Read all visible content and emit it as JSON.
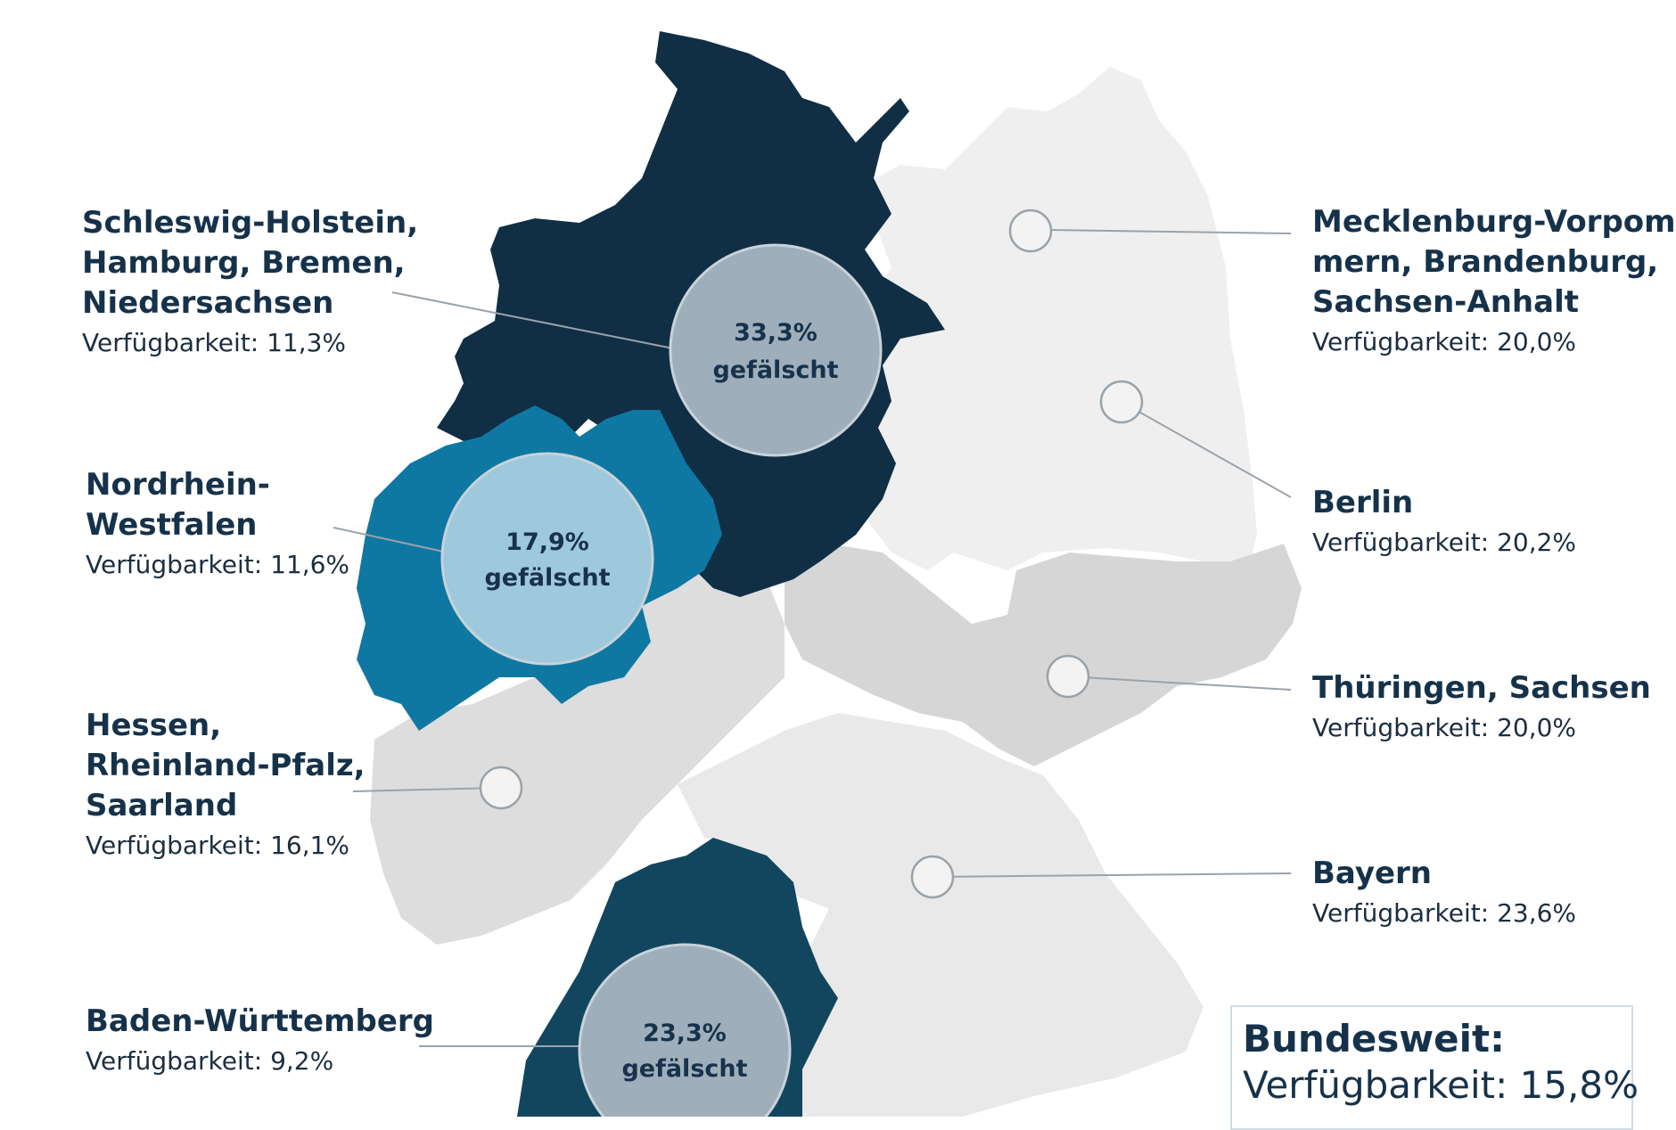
{
  "colors": {
    "dark_navy": "#102f45",
    "teal_blue": "#0f78a2",
    "navy_blue": "#12465f",
    "light_gray": "#efefef",
    "mid_gray": "#d8d8d8",
    "bubble_gray": "#9eafbb",
    "bubble_light": "#9ec8db",
    "text": "#16324a"
  },
  "regions": [
    {
      "id": "nord-west",
      "name_lines": [
        "Schleswig-Holstein,",
        "Hamburg, Bremen,",
        "Niedersachsen"
      ],
      "availability": "Verfügbarkeit: 11,3%",
      "fake_pct": "33,3%",
      "fake_word": "gefälscht"
    },
    {
      "id": "nrw",
      "name_lines": [
        "Nordrhein-",
        "Westfalen"
      ],
      "availability": "Verfügbarkeit: 11,6%",
      "fake_pct": "17,9%",
      "fake_word": "gefälscht"
    },
    {
      "id": "hessen",
      "name_lines": [
        "Hessen,",
        "Rheinland-Pfalz,",
        "Saarland"
      ],
      "availability": "Verfügbarkeit: 16,1%"
    },
    {
      "id": "bw",
      "name_lines": [
        "Baden-Württemberg"
      ],
      "availability": "Verfügbarkeit: 9,2%",
      "fake_pct": "23,3%",
      "fake_word": "gefälscht"
    },
    {
      "id": "nord-ost",
      "name_lines": [
        "Mecklenburg-Vorpom-",
        "mern, Brandenburg,",
        "Sachsen-Anhalt"
      ],
      "availability": "Verfügbarkeit: 20,0%"
    },
    {
      "id": "berlin",
      "name_lines": [
        "Berlin"
      ],
      "availability": "Verfügbarkeit: 20,2%"
    },
    {
      "id": "thueringen",
      "name_lines": [
        "Thüringen, Sachsen"
      ],
      "availability": "Verfügbarkeit: 20,0%"
    },
    {
      "id": "bayern",
      "name_lines": [
        "Bayern"
      ],
      "availability": "Verfügbarkeit: 23,6%"
    }
  ],
  "national": {
    "title": "Bundesweit:",
    "availability": "Verfügbarkeit: 15,8%"
  }
}
